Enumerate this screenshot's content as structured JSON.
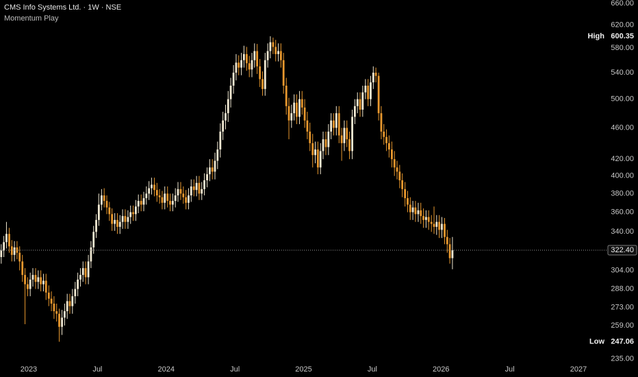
{
  "chart_data": {
    "type": "candlestick",
    "title": "CMS Info Systems Ltd. · 1W · NSE",
    "subtitle": "Momentum Play",
    "log_y": true,
    "grid": false,
    "up_color": "#f0e8d2",
    "down_color": "#e8982e",
    "x": [
      2022.8,
      2022.819,
      2022.838,
      2022.858,
      2022.877,
      2022.896,
      2022.915,
      2022.934,
      2022.954,
      2022.973,
      2022.992,
      2023.011,
      2023.03,
      2023.05,
      2023.069,
      2023.088,
      2023.107,
      2023.126,
      2023.146,
      2023.165,
      2023.184,
      2023.203,
      2023.222,
      2023.242,
      2023.261,
      2023.28,
      2023.299,
      2023.318,
      2023.338,
      2023.357,
      2023.376,
      2023.395,
      2023.414,
      2023.434,
      2023.453,
      2023.472,
      2023.491,
      2023.51,
      2023.53,
      2023.549,
      2023.568,
      2023.587,
      2023.606,
      2023.626,
      2023.645,
      2023.664,
      2023.683,
      2023.702,
      2023.722,
      2023.741,
      2023.76,
      2023.779,
      2023.798,
      2023.818,
      2023.837,
      2023.856,
      2023.875,
      2023.894,
      2023.914,
      2023.933,
      2023.952,
      2023.971,
      2023.99,
      2024.01,
      2024.029,
      2024.048,
      2024.067,
      2024.086,
      2024.106,
      2024.125,
      2024.144,
      2024.163,
      2024.182,
      2024.202,
      2024.221,
      2024.24,
      2024.259,
      2024.278,
      2024.298,
      2024.317,
      2024.336,
      2024.355,
      2024.374,
      2024.394,
      2024.413,
      2024.432,
      2024.451,
      2024.47,
      2024.49,
      2024.509,
      2024.528,
      2024.547,
      2024.566,
      2024.586,
      2024.605,
      2024.624,
      2024.643,
      2024.662,
      2024.682,
      2024.701,
      2024.72,
      2024.739,
      2024.758,
      2024.778,
      2024.797,
      2024.816,
      2024.835,
      2024.854,
      2024.874,
      2024.893,
      2024.912,
      2024.931,
      2024.95,
      2024.97,
      2024.989,
      2025.008,
      2025.027,
      2025.046,
      2025.066,
      2025.085,
      2025.104,
      2025.123,
      2025.142,
      2025.162,
      2025.181,
      2025.2,
      2025.219,
      2025.238,
      2025.258,
      2025.277,
      2025.296,
      2025.315,
      2025.334,
      2025.354,
      2025.373,
      2025.392,
      2025.411,
      2025.43,
      2025.45,
      2025.469,
      2025.488,
      2025.507,
      2025.526,
      2025.546,
      2025.565,
      2025.584,
      2025.603,
      2025.622,
      2025.642,
      2025.661,
      2025.68,
      2025.699,
      2025.718,
      2025.738,
      2025.757,
      2025.776,
      2025.795,
      2025.814,
      2025.834,
      2025.853,
      2025.872,
      2025.891,
      2025.91,
      2025.93,
      2025.949,
      2025.968,
      2025.987,
      2026.006,
      2026.026,
      2026.045,
      2026.064,
      2026.083
    ],
    "open": [
      316,
      322,
      330,
      338,
      326,
      318,
      325,
      320,
      312,
      300,
      292,
      288,
      296,
      300,
      294,
      298,
      292,
      295,
      285,
      280,
      276,
      270,
      268,
      258,
      265,
      270,
      278,
      274,
      282,
      288,
      296,
      300,
      306,
      298,
      312,
      325,
      340,
      352,
      368,
      378,
      372,
      365,
      358,
      348,
      352,
      345,
      350,
      356,
      350,
      355,
      360,
      358,
      366,
      372,
      368,
      375,
      380,
      386,
      390,
      384,
      378,
      376,
      370,
      380,
      372,
      368,
      372,
      378,
      385,
      380,
      376,
      370,
      378,
      388,
      384,
      392,
      380,
      385,
      395,
      402,
      410,
      405,
      418,
      432,
      455,
      470,
      480,
      500,
      520,
      540,
      556,
      548,
      560,
      570,
      555,
      545,
      560,
      575,
      550,
      530,
      515,
      560,
      575,
      590,
      582,
      570,
      575,
      560,
      520,
      490,
      470,
      480,
      495,
      475,
      500,
      488,
      470,
      455,
      440,
      425,
      432,
      410,
      430,
      445,
      435,
      455,
      470,
      460,
      480,
      450,
      440,
      460,
      445,
      430,
      475,
      490,
      500,
      485,
      510,
      520,
      500,
      525,
      540,
      535,
      480,
      455,
      448,
      440,
      432,
      420,
      410,
      405,
      395,
      385,
      375,
      368,
      360,
      365,
      358,
      362,
      356,
      352,
      355,
      350,
      348,
      345,
      350,
      342,
      348,
      335,
      328,
      315
    ],
    "high": [
      328,
      336,
      350,
      344,
      332,
      331,
      331,
      326,
      318,
      306,
      298,
      302,
      306,
      306,
      304,
      304,
      301,
      301,
      291,
      286,
      282,
      276,
      272,
      271,
      276,
      284,
      284,
      288,
      294,
      302,
      306,
      312,
      312,
      318,
      331,
      346,
      358,
      380,
      385,
      386,
      378,
      371,
      364,
      359,
      359,
      357,
      363,
      363,
      362,
      367,
      367,
      373,
      379,
      379,
      382,
      388,
      394,
      398,
      398,
      392,
      385,
      383,
      388,
      388,
      380,
      380,
      386,
      393,
      393,
      388,
      384,
      386,
      396,
      396,
      400,
      400,
      393,
      403,
      410,
      420,
      420,
      428,
      442,
      466,
      482,
      492,
      512,
      532,
      552,
      570,
      568,
      572,
      584,
      582,
      567,
      572,
      588,
      587,
      562,
      542,
      572,
      588,
      600.35,
      598,
      594,
      588,
      588,
      572,
      532,
      502,
      492,
      507,
      507,
      512,
      512,
      500,
      482,
      467,
      452,
      442,
      442,
      440,
      455,
      455,
      465,
      480,
      480,
      490,
      490,
      460,
      470,
      470,
      455,
      485,
      500,
      510,
      510,
      520,
      530,
      530,
      535,
      550,
      548,
      540,
      490,
      465,
      458,
      450,
      442,
      430,
      418,
      413,
      403,
      393,
      383,
      376,
      372,
      372,
      370,
      370,
      364,
      362,
      362,
      357,
      366,
      357,
      357,
      355,
      354,
      342,
      334,
      335
    ],
    "low": [
      310,
      316,
      324,
      320,
      312,
      312,
      314,
      304,
      294,
      260,
      282,
      282,
      290,
      288,
      288,
      286,
      286,
      279,
      274,
      270,
      264,
      262,
      247.06,
      252,
      259,
      264,
      268,
      268,
      276,
      282,
      290,
      294,
      292,
      292,
      306,
      319,
      334,
      346,
      362,
      365,
      358,
      351,
      341,
      341,
      338,
      338,
      343,
      343,
      343,
      348,
      351,
      351,
      359,
      361,
      361,
      368,
      373,
      379,
      377,
      371,
      369,
      363,
      363,
      365,
      361,
      361,
      365,
      371,
      373,
      369,
      363,
      363,
      371,
      377,
      377,
      373,
      373,
      378,
      387,
      394,
      396,
      396,
      408,
      422,
      444,
      458,
      468,
      488,
      508,
      528,
      536,
      536,
      548,
      543,
      533,
      533,
      548,
      538,
      518,
      505,
      505,
      548,
      563,
      570,
      558,
      558,
      548,
      508,
      478,
      445,
      460,
      470,
      465,
      465,
      478,
      460,
      445,
      430,
      410,
      415,
      402,
      402,
      420,
      425,
      425,
      445,
      450,
      450,
      440,
      418,
      430,
      435,
      420,
      420,
      465,
      480,
      475,
      475,
      500,
      490,
      490,
      515,
      525,
      470,
      445,
      438,
      430,
      422,
      410,
      400,
      396,
      386,
      376,
      366,
      360,
      352,
      352,
      350,
      350,
      348,
      344,
      344,
      342,
      340,
      338,
      337,
      334,
      334,
      328,
      320,
      310,
      305
    ],
    "close": [
      322,
      330,
      338,
      326,
      318,
      325,
      320,
      312,
      300,
      292,
      288,
      296,
      300,
      294,
      298,
      292,
      295,
      285,
      280,
      276,
      270,
      268,
      258,
      265,
      270,
      278,
      274,
      282,
      288,
      296,
      300,
      306,
      298,
      312,
      325,
      340,
      352,
      368,
      378,
      372,
      365,
      358,
      348,
      352,
      345,
      350,
      356,
      350,
      355,
      360,
      358,
      366,
      372,
      368,
      375,
      380,
      386,
      390,
      384,
      378,
      376,
      370,
      380,
      372,
      368,
      372,
      378,
      385,
      380,
      376,
      370,
      378,
      388,
      384,
      392,
      380,
      385,
      395,
      402,
      410,
      405,
      418,
      432,
      455,
      470,
      480,
      500,
      520,
      540,
      556,
      548,
      560,
      570,
      555,
      545,
      560,
      575,
      550,
      530,
      515,
      560,
      575,
      590,
      582,
      570,
      575,
      560,
      520,
      490,
      470,
      480,
      495,
      475,
      500,
      488,
      470,
      455,
      440,
      425,
      432,
      410,
      430,
      445,
      435,
      455,
      470,
      460,
      480,
      450,
      440,
      460,
      445,
      430,
      475,
      490,
      500,
      485,
      510,
      520,
      500,
      525,
      540,
      535,
      480,
      455,
      448,
      440,
      432,
      420,
      410,
      405,
      395,
      385,
      375,
      368,
      360,
      365,
      358,
      362,
      356,
      352,
      355,
      350,
      348,
      345,
      350,
      342,
      348,
      335,
      328,
      315,
      322.4
    ],
    "xlim": [
      2022.791,
      2027.214
    ],
    "xticks": [
      2023,
      {
        "value": 2023.5,
        "label": "Jul"
      },
      2024,
      {
        "value": 2024.5,
        "label": "Jul"
      },
      2025,
      {
        "value": 2025.5,
        "label": "Jul"
      },
      2026,
      {
        "value": 2026.5,
        "label": "Jul"
      },
      2027
    ],
    "ylim": [
      223,
      667
    ],
    "yticks": [
      {
        "value": 235,
        "label": "235.00"
      },
      {
        "value": 259,
        "label": "259.00"
      },
      {
        "value": 273,
        "label": "273.00"
      },
      {
        "value": 288,
        "label": "288.00"
      },
      {
        "value": 304,
        "label": "304.00"
      },
      {
        "value": 340,
        "label": "340.00"
      },
      {
        "value": 360,
        "label": "360.00"
      },
      {
        "value": 380,
        "label": "380.00"
      },
      {
        "value": 400,
        "label": "400.00"
      },
      {
        "value": 420,
        "label": "420.00"
      },
      {
        "value": 460,
        "label": "460.00"
      },
      {
        "value": 500,
        "label": "500.00"
      },
      {
        "value": 540,
        "label": "540.00"
      },
      {
        "value": 580,
        "label": "580.00"
      },
      {
        "value": 620,
        "label": "620.00"
      },
      {
        "value": 660,
        "label": "660.00"
      }
    ],
    "last_price": {
      "value": 322.4,
      "label": "322.40"
    },
    "high_marker": {
      "label": "High",
      "value": 600.35
    },
    "low_marker": {
      "label": "Low",
      "value": 247.06
    }
  }
}
